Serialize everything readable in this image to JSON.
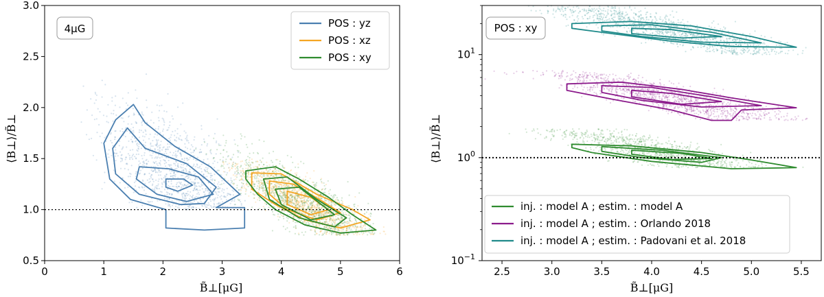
{
  "chart_data": [
    {
      "type": "scatter",
      "subtype": "scatter-with-density-contours",
      "annotation": "4μG",
      "xlabel": "B̃⊥[μG]",
      "ylabel": "⟨B⊥⟩/B̃⊥",
      "xlim": [
        0,
        6
      ],
      "ylim": [
        0.5,
        3.0
      ],
      "yscale": "linear",
      "xticks": [
        0,
        1,
        2,
        3,
        4,
        5,
        6
      ],
      "yticks": [
        0.5,
        1.0,
        1.5,
        2.0,
        2.5,
        3.0
      ],
      "xtick_labels": [
        "0",
        "1",
        "2",
        "3",
        "4",
        "5",
        "6"
      ],
      "ytick_labels": [
        "0.5",
        "1.0",
        "1.5",
        "2.0",
        "2.5",
        "3.0"
      ],
      "reference_line": {
        "y": 1.0,
        "style": "dotted"
      },
      "legend_position": "top-right",
      "series": [
        {
          "name": "POS : yz",
          "color": "#4a7fb0",
          "cloud_center": [
            2.3,
            1.3
          ],
          "x_range": [
            0.6,
            3.4
          ],
          "y_range": [
            1.0,
            2.8
          ],
          "contours": [
            [
              [
                1.5,
                2.03
              ],
              [
                1.7,
                1.85
              ],
              [
                2.2,
                1.62
              ],
              [
                2.8,
                1.42
              ],
              [
                3.3,
                1.15
              ],
              [
                2.9,
                1.02
              ],
              [
                3.38,
                1.02
              ],
              [
                3.38,
                0.82
              ],
              [
                2.7,
                0.8
              ],
              [
                2.05,
                0.82
              ],
              [
                2.05,
                1.0
              ],
              [
                1.45,
                1.1
              ],
              [
                1.1,
                1.3
              ],
              [
                1.0,
                1.65
              ],
              [
                1.2,
                1.88
              ]
            ],
            [
              [
                1.4,
                1.8
              ],
              [
                1.7,
                1.6
              ],
              [
                2.4,
                1.45
              ],
              [
                2.9,
                1.22
              ],
              [
                2.7,
                1.06
              ],
              [
                2.3,
                1.05
              ],
              [
                1.6,
                1.15
              ],
              [
                1.2,
                1.35
              ],
              [
                1.15,
                1.6
              ]
            ],
            [
              [
                1.6,
                1.42
              ],
              [
                2.1,
                1.4
              ],
              [
                2.6,
                1.32
              ],
              [
                2.85,
                1.15
              ],
              [
                2.4,
                1.08
              ],
              [
                1.9,
                1.15
              ],
              [
                1.55,
                1.3
              ]
            ],
            [
              [
                2.05,
                1.3
              ],
              [
                2.35,
                1.3
              ],
              [
                2.5,
                1.24
              ],
              [
                2.25,
                1.18
              ],
              [
                2.05,
                1.22
              ]
            ]
          ]
        },
        {
          "name": "POS : xz",
          "color": "#f5a623",
          "cloud_center": [
            4.4,
            1.05
          ],
          "x_range": [
            3.0,
            5.8
          ],
          "y_range": [
            0.75,
            1.5
          ],
          "contours": [
            [
              [
                3.5,
                1.36
              ],
              [
                4.0,
                1.35
              ],
              [
                4.6,
                1.15
              ],
              [
                5.2,
                1.0
              ],
              [
                5.5,
                0.9
              ],
              [
                5.0,
                0.82
              ],
              [
                4.4,
                0.9
              ],
              [
                3.9,
                1.05
              ],
              [
                3.5,
                1.2
              ]
            ],
            [
              [
                3.8,
                1.28
              ],
              [
                4.2,
                1.25
              ],
              [
                4.7,
                1.08
              ],
              [
                5.0,
                0.97
              ],
              [
                4.6,
                0.9
              ],
              [
                4.1,
                1.0
              ],
              [
                3.8,
                1.15
              ]
            ],
            [
              [
                4.1,
                1.18
              ],
              [
                4.5,
                1.12
              ],
              [
                4.8,
                1.0
              ],
              [
                4.5,
                0.95
              ],
              [
                4.1,
                1.05
              ]
            ]
          ]
        },
        {
          "name": "POS : xy",
          "color": "#2e8b2e",
          "cloud_center": [
            4.5,
            1.0
          ],
          "x_range": [
            2.5,
            5.6
          ],
          "y_range": [
            0.75,
            1.8
          ],
          "contours": [
            [
              [
                3.4,
                1.38
              ],
              [
                3.9,
                1.42
              ],
              [
                4.3,
                1.3
              ],
              [
                4.8,
                1.12
              ],
              [
                5.2,
                0.95
              ],
              [
                5.6,
                0.8
              ],
              [
                5.0,
                0.77
              ],
              [
                4.4,
                0.85
              ],
              [
                3.9,
                1.0
              ],
              [
                3.6,
                1.15
              ],
              [
                3.4,
                1.3
              ]
            ],
            [
              [
                3.7,
                1.3
              ],
              [
                4.1,
                1.32
              ],
              [
                4.6,
                1.1
              ],
              [
                5.1,
                0.92
              ],
              [
                4.9,
                0.83
              ],
              [
                4.3,
                0.92
              ],
              [
                3.8,
                1.1
              ]
            ],
            [
              [
                3.9,
                1.2
              ],
              [
                4.3,
                1.22
              ],
              [
                4.9,
                0.95
              ],
              [
                4.5,
                0.9
              ],
              [
                4.0,
                1.05
              ]
            ]
          ]
        }
      ]
    },
    {
      "type": "scatter",
      "subtype": "scatter-with-density-contours",
      "annotation": "POS : xy",
      "xlabel": "B̃⊥[μG]",
      "ylabel": "⟨B⊥⟩/B̃⊥",
      "xlim": [
        2.3,
        5.7
      ],
      "ylim": [
        0.1,
        30
      ],
      "yscale": "log",
      "xticks": [
        2.5,
        3.0,
        3.5,
        4.0,
        4.5,
        5.0,
        5.5
      ],
      "xtick_labels": [
        "2.5",
        "3.0",
        "3.5",
        "4.0",
        "4.5",
        "5.0",
        "5.5"
      ],
      "yticks": [
        0.1,
        1,
        10
      ],
      "ytick_base": "10",
      "ytick_exponents": [
        "−1",
        "0",
        "1"
      ],
      "reference_line": {
        "y": 1.0,
        "style": "dotted"
      },
      "legend_position": "bottom-left",
      "series": [
        {
          "name": "inj. : model A ; estim. : model A",
          "color": "#2e8b2e",
          "cloud_center": [
            4.2,
            1.05
          ],
          "x_range": [
            2.3,
            5.6
          ],
          "y_range": [
            0.8,
            1.9
          ],
          "contours": [
            [
              [
                3.2,
                1.35
              ],
              [
                3.8,
                1.3
              ],
              [
                4.5,
                1.12
              ],
              [
                5.0,
                0.95
              ],
              [
                5.45,
                0.8
              ],
              [
                4.8,
                0.78
              ],
              [
                4.0,
                0.92
              ],
              [
                3.4,
                1.12
              ],
              [
                3.2,
                1.25
              ]
            ],
            [
              [
                3.5,
                1.28
              ],
              [
                4.1,
                1.18
              ],
              [
                4.7,
                1.0
              ],
              [
                4.5,
                0.9
              ],
              [
                3.9,
                1.0
              ],
              [
                3.5,
                1.15
              ]
            ],
            [
              [
                3.8,
                1.18
              ],
              [
                4.3,
                1.1
              ],
              [
                4.6,
                0.98
              ],
              [
                4.2,
                0.96
              ],
              [
                3.8,
                1.08
              ]
            ]
          ]
        },
        {
          "name": "inj. : model A ; estim. : Orlando 2018",
          "color": "#8b1a8b",
          "cloud_center": [
            4.2,
            3.8
          ],
          "x_range": [
            2.3,
            5.6
          ],
          "y_range": [
            2.3,
            7.0
          ],
          "contours": [
            [
              [
                3.15,
                5.2
              ],
              [
                3.7,
                5.4
              ],
              [
                4.3,
                4.6
              ],
              [
                4.8,
                3.8
              ],
              [
                5.45,
                3.05
              ],
              [
                4.9,
                2.9
              ],
              [
                4.8,
                2.3
              ],
              [
                4.6,
                2.3
              ],
              [
                4.2,
                2.9
              ],
              [
                3.6,
                3.7
              ],
              [
                3.15,
                4.5
              ]
            ],
            [
              [
                3.5,
                5.0
              ],
              [
                4.0,
                4.8
              ],
              [
                4.6,
                3.9
              ],
              [
                5.1,
                3.2
              ],
              [
                4.5,
                3.1
              ],
              [
                3.9,
                3.6
              ],
              [
                3.5,
                4.3
              ]
            ],
            [
              [
                3.8,
                4.5
              ],
              [
                4.2,
                4.2
              ],
              [
                4.7,
                3.5
              ],
              [
                4.3,
                3.3
              ],
              [
                3.8,
                3.9
              ]
            ]
          ]
        },
        {
          "name": "inj. : model A ; estim. : Padovani et al. 2018",
          "color": "#1f8a8a",
          "cloud_center": [
            4.2,
            17
          ],
          "x_range": [
            2.3,
            5.6
          ],
          "y_range": [
            10,
            30
          ],
          "contours": [
            [
              [
                3.2,
                20
              ],
              [
                3.8,
                21
              ],
              [
                4.4,
                19
              ],
              [
                5.0,
                15
              ],
              [
                5.45,
                11.8
              ],
              [
                4.8,
                12
              ],
              [
                4.2,
                13.5
              ],
              [
                3.6,
                16
              ],
              [
                3.2,
                18
              ]
            ],
            [
              [
                3.5,
                19
              ],
              [
                4.0,
                19.5
              ],
              [
                4.6,
                16.5
              ],
              [
                5.1,
                13
              ],
              [
                4.5,
                13.2
              ],
              [
                3.9,
                15
              ],
              [
                3.5,
                17
              ]
            ],
            [
              [
                3.8,
                18
              ],
              [
                4.2,
                17.5
              ],
              [
                4.7,
                15
              ],
              [
                4.3,
                14.5
              ],
              [
                3.8,
                16
              ]
            ]
          ]
        }
      ]
    }
  ]
}
